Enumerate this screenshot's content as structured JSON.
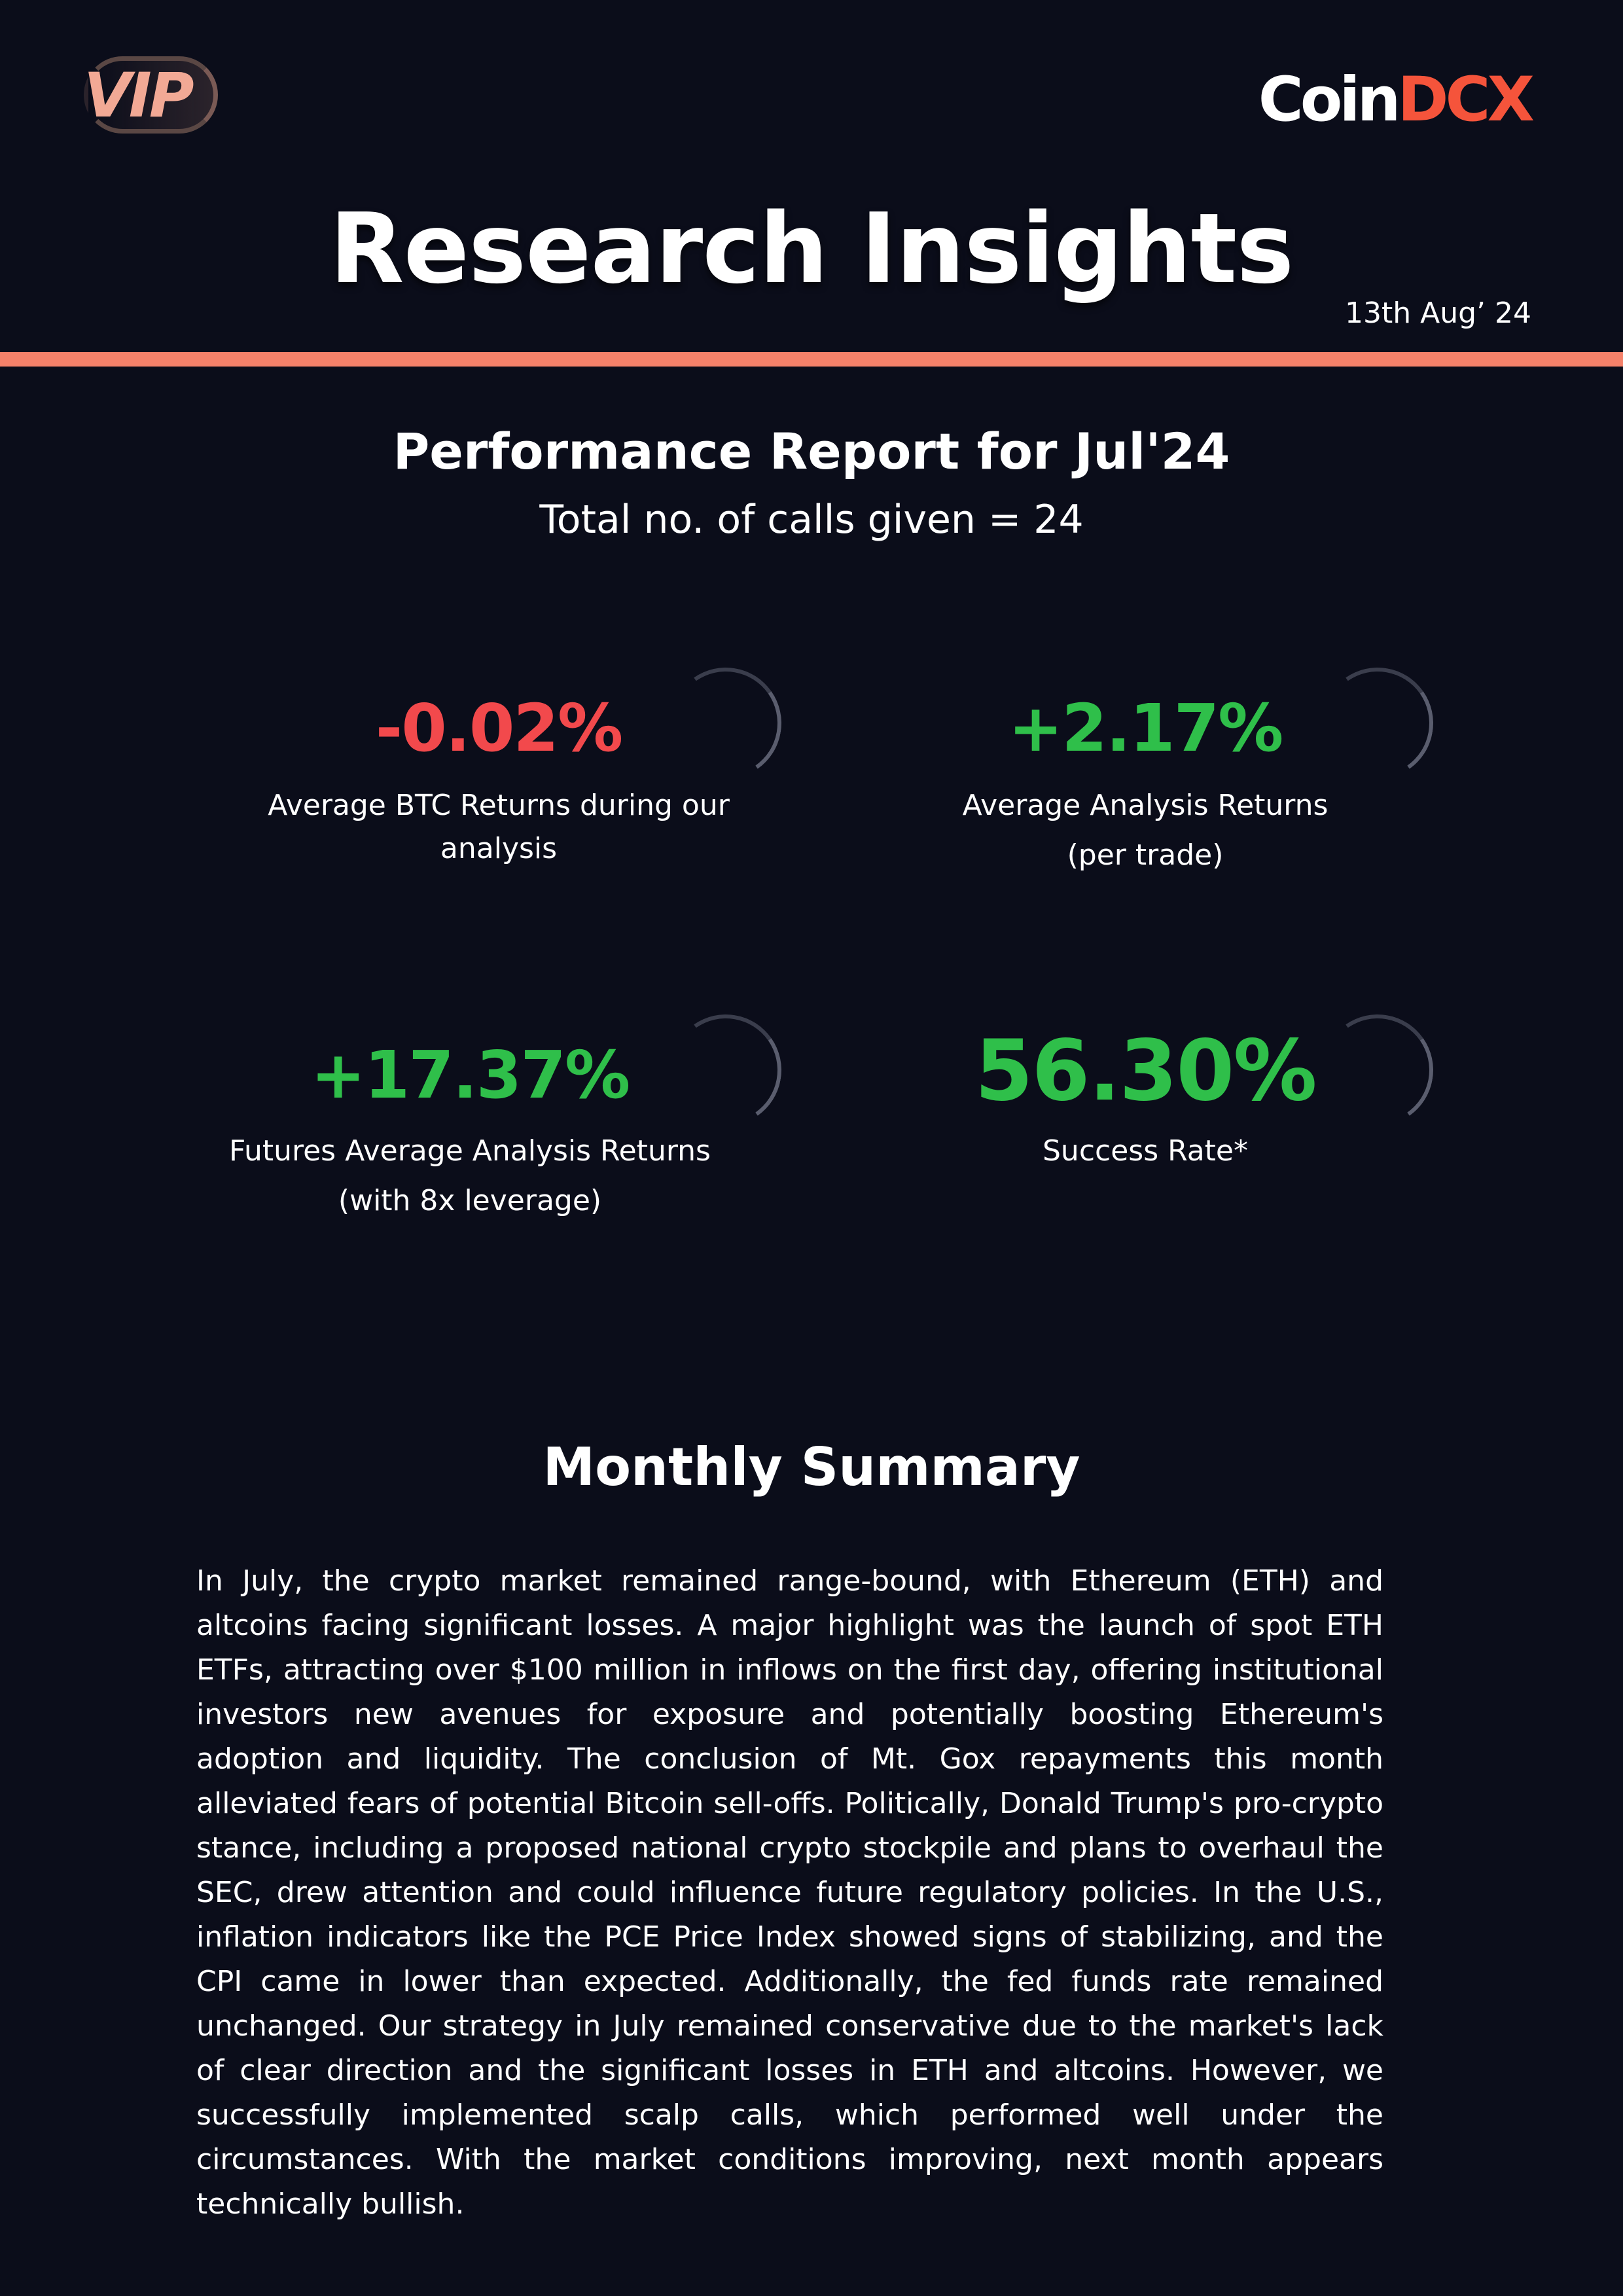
{
  "header": {
    "badge_text": "VIP",
    "logo": {
      "part1": "Coin",
      "part2": "DCX"
    },
    "title": "Research Insights",
    "date": "13th Aug’ 24"
  },
  "report": {
    "title": "Performance Report for Jul'24",
    "calls_total": "Total no. of calls given = 24"
  },
  "metrics": [
    {
      "value": "-0.02%",
      "label_line1": "Average BTC Returns during our",
      "label_line2": "analysis",
      "tone": "negative"
    },
    {
      "value": "+2.17%",
      "label_line1": "Average Analysis Returns",
      "label_line2": "(per trade)",
      "tone": "positive"
    },
    {
      "value": "+17.37%",
      "label_line1": "Futures Average Analysis Returns",
      "label_line2": "(with 8x leverage)",
      "tone": "positive"
    },
    {
      "value": "56.30%",
      "label_line1": "Success Rate*",
      "label_line2": "",
      "tone": "positive"
    }
  ],
  "summary": {
    "title": "Monthly Summary",
    "body": "In July, the crypto market remained range-bound, with Ethereum (ETH) and altcoins facing significant losses. A major highlight was the launch of spot ETH ETFs, attracting over $100 million in inflows on the first day, offering institutional investors new avenues for exposure and potentially boosting Ethereum's adoption and liquidity. The conclusion of Mt. Gox repayments this month alleviated fears of potential Bitcoin sell-offs. Politically, Donald Trump's pro-crypto stance, including a proposed national crypto stockpile and plans to overhaul the SEC, drew attention and could influence future regulatory policies. In the U.S., inflation indicators like the PCE Price Index showed signs of stabilizing, and the CPI came in lower than expected. Additionally, the fed funds rate remained unchanged. Our strategy in July remained conservative due to the market's lack of clear direction and the significant losses in ETH and altcoins. However, we successfully implemented scalp calls, which performed well under the circumstances. With the market conditions improving, next month appears technically bullish."
  },
  "colors": {
    "background": "#0b0d1a",
    "accent": "#f5816a",
    "brand": "#f5543b",
    "negative": "#f2494c",
    "positive": "#2fbf4a"
  }
}
